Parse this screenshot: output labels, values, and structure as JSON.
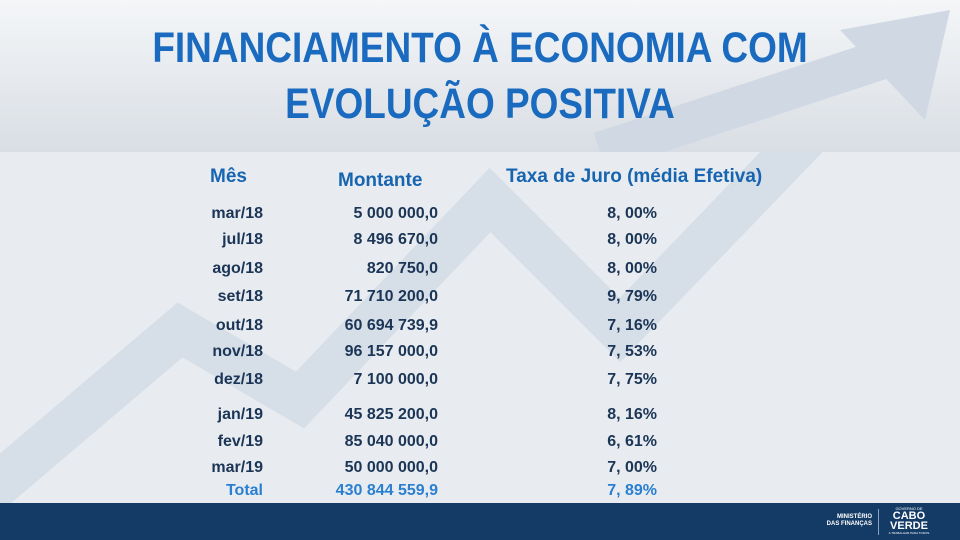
{
  "title": {
    "line1": "FINANCIAMENTO À ECONOMIA COM",
    "line2": "EVOLUÇÃO POSITIVA"
  },
  "table": {
    "headers": {
      "month": "Mês",
      "amount": "Montante",
      "rate": "Taxa de Juro (média Efetiva)"
    },
    "rows": [
      {
        "month": "mar/18",
        "amount": "5 000 000,0",
        "rate": "8, 00%"
      },
      {
        "month": "jul/18",
        "amount": "8 496 670,0",
        "rate": "8, 00%"
      },
      {
        "month": "ago/18",
        "amount": "820 750,0",
        "rate": "8, 00%"
      },
      {
        "month": "set/18",
        "amount": "71 710 200,0",
        "rate": "9, 79%"
      },
      {
        "month": "out/18",
        "amount": "60 694 739,9",
        "rate": "7, 16%"
      },
      {
        "month": "nov/18",
        "amount": "96 157 000,0",
        "rate": "7, 53%"
      },
      {
        "month": "dez/18",
        "amount": "7 100 000,0",
        "rate": "7, 75%"
      },
      {
        "month": "jan/19",
        "amount": "45 825 200,0",
        "rate": "8, 16%"
      },
      {
        "month": "fev/19",
        "amount": "85 040 000,0",
        "rate": "6, 61%"
      },
      {
        "month": "mar/19",
        "amount": "50 000 000,0",
        "rate": "7, 00%"
      }
    ],
    "total": {
      "label": "Total",
      "amount": "430 844 559,9",
      "rate": "7, 89%"
    }
  },
  "footer": {
    "ministry_line1": "MINISTÉRIO",
    "ministry_line2": "DAS FINANÇAS",
    "logo_top": "GOVERNO DE",
    "logo_line1": "CABO",
    "logo_line2": "VERDE",
    "logo_tagline": "A TRABALHAR PARA TODOS"
  },
  "colors": {
    "title": "#1a6bbf",
    "text": "#1b3556",
    "footer": "#143a66"
  }
}
